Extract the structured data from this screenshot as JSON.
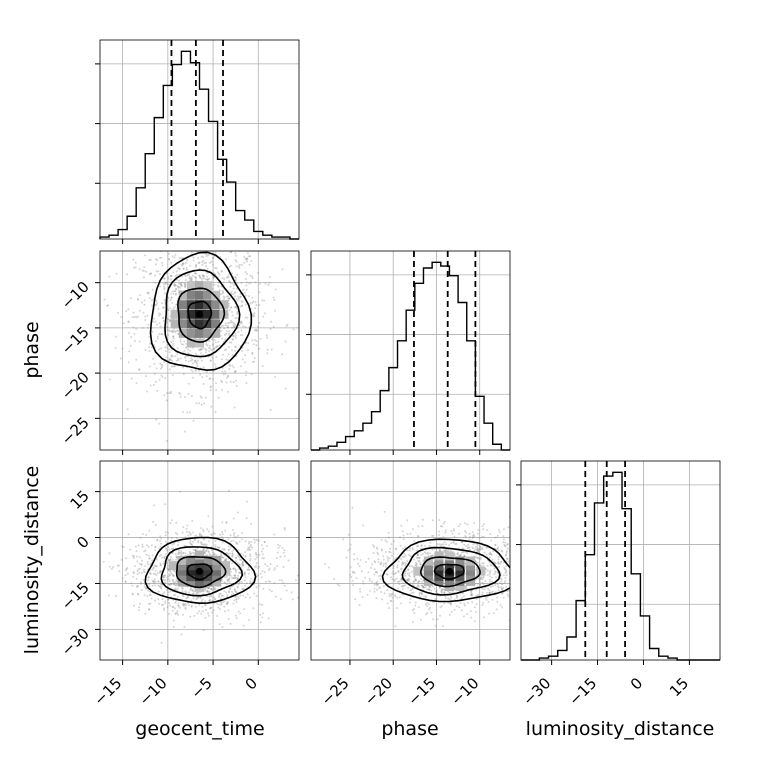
{
  "colors": {
    "ink": "#000000",
    "grid": "#b0b0b0",
    "scatter": "#888888"
  },
  "chart_data": {
    "type": "corner",
    "parameters": [
      "geocent_time",
      "phase",
      "luminosity_distance"
    ],
    "grid": true,
    "marginals": [
      {
        "parameter": "geocent_time",
        "type": "histogram",
        "xlim": [
          -17.5,
          4.5
        ],
        "bin_edges": [
          -17.5,
          -16.5,
          -15.5,
          -14.5,
          -13.5,
          -12.5,
          -11.5,
          -10.5,
          -9.5,
          -8.5,
          -7.5,
          -6.5,
          -5.5,
          -4.5,
          -3.5,
          -2.5,
          -1.5,
          -0.5,
          0.5,
          1.5,
          2.5,
          3.5,
          4.5
        ],
        "density": [
          0.01,
          0.02,
          0.05,
          0.12,
          0.27,
          0.45,
          0.64,
          0.81,
          0.92,
          0.99,
          0.93,
          0.79,
          0.62,
          0.42,
          0.3,
          0.15,
          0.1,
          0.04,
          0.02,
          0.01,
          0.01,
          0.0
        ],
        "quantiles": [
          -9.6,
          -6.9,
          -3.9
        ]
      },
      {
        "parameter": "phase",
        "type": "histogram",
        "xlim": [
          -29.5,
          -6.5
        ],
        "bin_edges": [
          -29.5,
          -28.5,
          -27.5,
          -26.5,
          -25.5,
          -24.5,
          -23.5,
          -22.5,
          -21.5,
          -20.5,
          -19.5,
          -18.5,
          -17.5,
          -16.5,
          -15.5,
          -14.5,
          -13.5,
          -12.5,
          -11.5,
          -10.5,
          -9.5,
          -8.5,
          -7.5,
          -6.5
        ],
        "density": [
          0.0,
          0.01,
          0.02,
          0.04,
          0.07,
          0.1,
          0.14,
          0.2,
          0.31,
          0.43,
          0.57,
          0.73,
          0.87,
          0.95,
          0.98,
          0.96,
          0.91,
          0.77,
          0.57,
          0.28,
          0.14,
          0.03,
          0.0
        ],
        "quantiles": [
          -17.6,
          -13.7,
          -10.5
        ]
      },
      {
        "parameter": "luminosity_distance",
        "type": "histogram",
        "xlim": [
          -40,
          25
        ],
        "bin_edges": [
          -40,
          -37,
          -34,
          -31,
          -28,
          -25,
          -22,
          -19,
          -16,
          -13,
          -10,
          -7,
          -4,
          -1,
          2,
          5,
          8,
          11,
          14,
          17,
          20,
          23,
          25
        ],
        "density": [
          0.0,
          0.0,
          0.01,
          0.02,
          0.05,
          0.12,
          0.31,
          0.55,
          0.82,
          0.96,
          0.98,
          0.79,
          0.45,
          0.23,
          0.06,
          0.02,
          0.01,
          0.0,
          0.0,
          0.0,
          0.0,
          0.0
        ],
        "quantiles": [
          -19.0,
          -12.0,
          -6.0
        ]
      }
    ],
    "joint": [
      {
        "x": "geocent_time",
        "y": "phase",
        "xlim": [
          -17.5,
          4.5
        ],
        "ylim": [
          -28.5,
          -6.5
        ],
        "center": [
          -6.5,
          -13.5
        ],
        "sigma": [
          2.8,
          3.3
        ]
      },
      {
        "x": "geocent_time",
        "y": "luminosity_distance",
        "xlim": [
          -17.5,
          4.5
        ],
        "ylim": [
          -40,
          25
        ],
        "center": [
          -6.5,
          -11.0
        ],
        "sigma": [
          3.0,
          5.5
        ]
      },
      {
        "x": "phase",
        "y": "luminosity_distance",
        "xlim": [
          -29.5,
          -6.5
        ],
        "ylim": [
          -40,
          25
        ],
        "center": [
          -13.5,
          -11.0
        ],
        "sigma": [
          3.8,
          5.2
        ]
      }
    ],
    "ticks": {
      "geocent_time": [
        -15,
        -10,
        -5,
        0
      ],
      "phase": [
        -25,
        -20,
        -15,
        -10
      ],
      "luminosity_distance": [
        -30,
        -15,
        0,
        15
      ]
    },
    "tick_labels": {
      "geocent_time": [
        "−15",
        "−10",
        "−5",
        "0"
      ],
      "phase": [
        "−25",
        "−20",
        "−15",
        "−10"
      ],
      "luminosity_distance": [
        "−30",
        "−15",
        "0",
        "15"
      ]
    },
    "xlabels": [
      "geocent_time",
      "phase",
      "luminosity_distance"
    ],
    "ylabels": [
      "phase",
      "luminosity_distance"
    ]
  }
}
